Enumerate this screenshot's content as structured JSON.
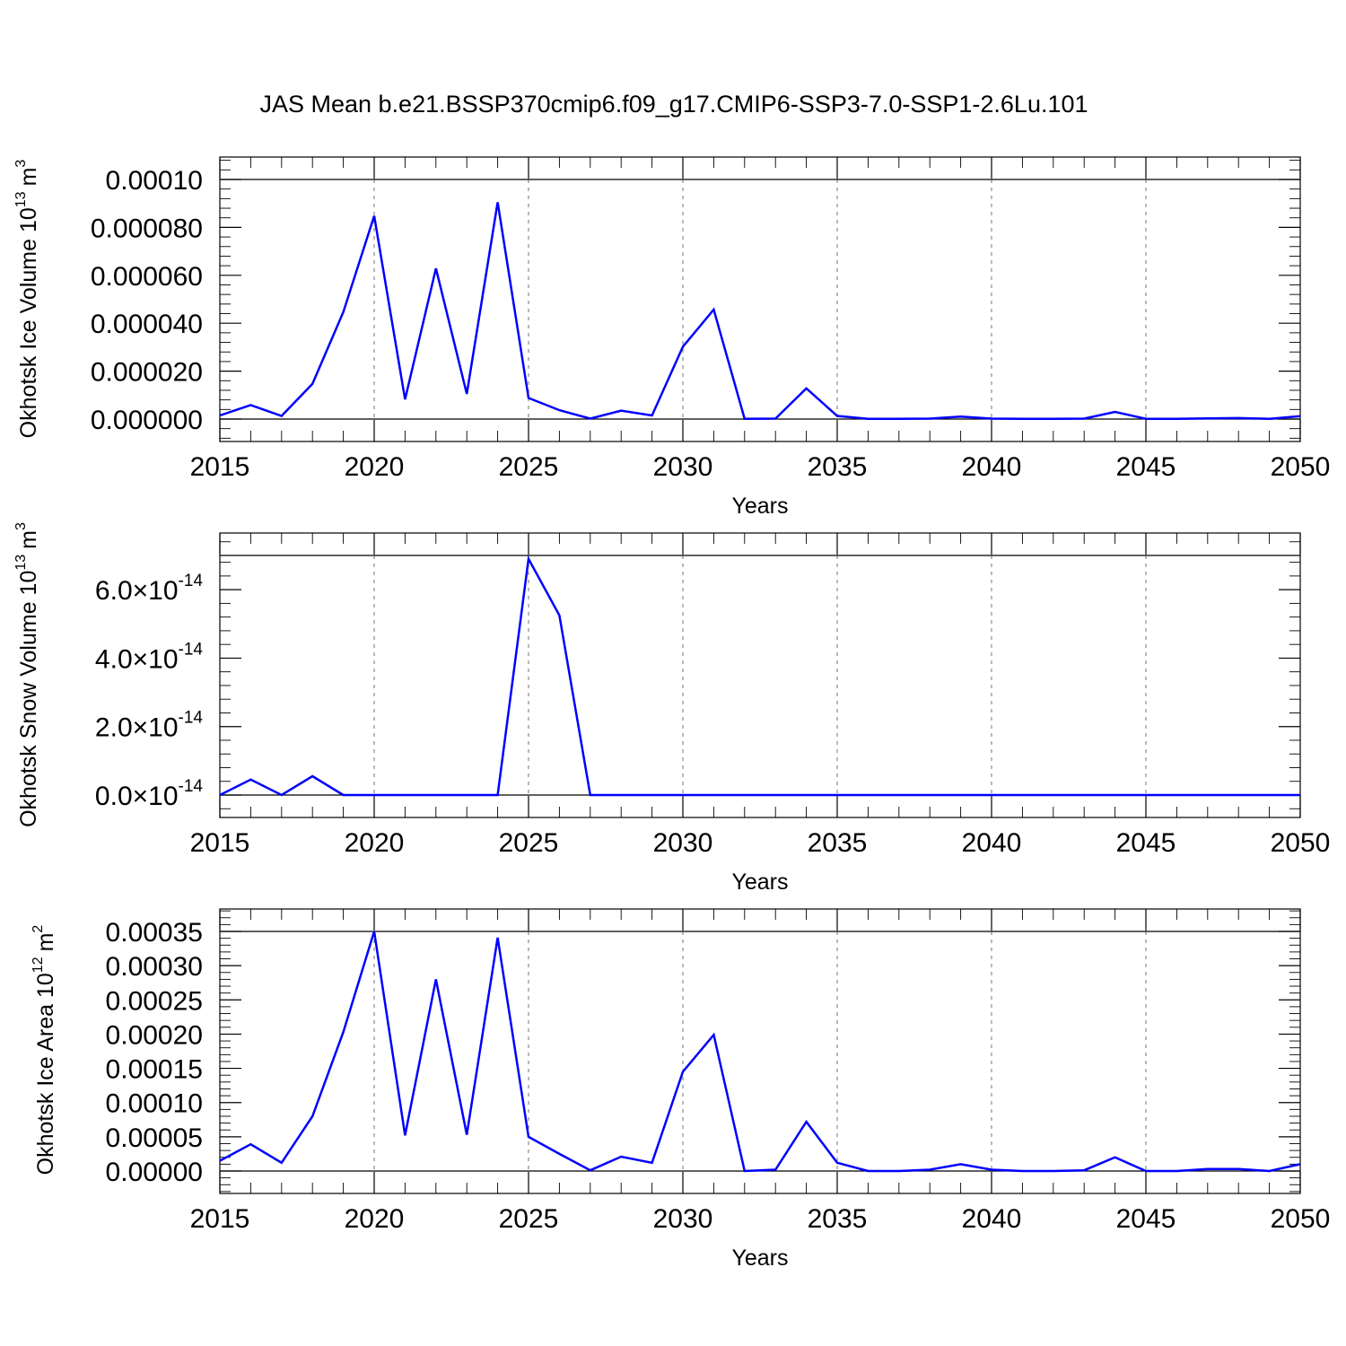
{
  "title": "JAS Mean b.e21.BSSP370cmip6.f09_g17.CMIP6-SSP3-7.0-SSP1-2.6Lu.101",
  "chart_data": [
    {
      "type": "line",
      "xlabel": "Years",
      "ylabel": "Okhotsk Ice Volume 10",
      "ylabel_sup": "13",
      "ylabel_unit": "m",
      "ylabel_unit_sup": "3",
      "xlim": [
        2015,
        2050
      ],
      "ylim": [
        0,
        0.0001
      ],
      "x_ticks": [
        "2015",
        "2020",
        "2025",
        "2030",
        "2035",
        "2040",
        "2045",
        "2050"
      ],
      "y_ticks": [
        {
          "value": 0.0,
          "label": "0.000000"
        },
        {
          "value": 2e-05,
          "label": "0.000020"
        },
        {
          "value": 4e-05,
          "label": "0.000040"
        },
        {
          "value": 6e-05,
          "label": "0.000060"
        },
        {
          "value": 8e-05,
          "label": "0.000080"
        },
        {
          "value": 0.0001,
          "label": "0.00010"
        }
      ],
      "grid": "vertical-dashed",
      "color": "#0000ff",
      "x": [
        2015,
        2016,
        2017,
        2018,
        2019,
        2020,
        2021,
        2022,
        2023,
        2024,
        2025,
        2026,
        2027,
        2028,
        2029,
        2030,
        2031,
        2032,
        2033,
        2034,
        2035,
        2036,
        2037,
        2038,
        2039,
        2040,
        2041,
        2042,
        2043,
        2044,
        2045,
        2046,
        2047,
        2048,
        2049,
        2050
      ],
      "y": [
        1.5e-06,
        5.8e-06,
        1.3e-06,
        1.47e-05,
        4.47e-05,
        8.48e-05,
        8.2e-06,
        6.29e-05,
        1.05e-05,
        9.05e-05,
        8.8e-06,
        3.7e-06,
        2e-07,
        3.5e-06,
        1.5e-06,
        3.02e-05,
        4.57e-05,
        1e-07,
        2e-07,
        1.28e-05,
        1.3e-06,
        1e-07,
        1e-07,
        2e-07,
        1e-06,
        2e-07,
        1e-07,
        1e-07,
        2e-07,
        3e-06,
        1e-07,
        1e-07,
        3e-07,
        4e-07,
        1e-07,
        1.2e-06
      ]
    },
    {
      "type": "line",
      "xlabel": "Years",
      "ylabel": "Okhotsk Snow Volume 10",
      "ylabel_sup": "13",
      "ylabel_unit": "m",
      "ylabel_unit_sup": "3",
      "xlim": [
        2015,
        2050
      ],
      "ylim": [
        0,
        7e-14
      ],
      "x_ticks": [
        "2015",
        "2020",
        "2025",
        "2030",
        "2035",
        "2040",
        "2045",
        "2050"
      ],
      "y_ticks": [
        {
          "value": 0.0,
          "mant": "0.0",
          "exp": "-14"
        },
        {
          "value": 2e-14,
          "mant": "2.0",
          "exp": "-14"
        },
        {
          "value": 4e-14,
          "mant": "4.0",
          "exp": "-14"
        },
        {
          "value": 6e-14,
          "mant": "6.0",
          "exp": "-14"
        }
      ],
      "grid": "vertical-dashed",
      "color": "#0000ff",
      "x": [
        2015,
        2016,
        2017,
        2018,
        2019,
        2020,
        2021,
        2022,
        2023,
        2024,
        2025,
        2026,
        2027,
        2028,
        2029,
        2030,
        2031,
        2032,
        2033,
        2034,
        2035,
        2036,
        2037,
        2038,
        2039,
        2040,
        2041,
        2042,
        2043,
        2044,
        2045,
        2046,
        2047,
        2048,
        2049,
        2050
      ],
      "y": [
        0.0,
        4.5e-15,
        0.0,
        5.5e-15,
        0.0,
        0.0,
        0.0,
        0.0,
        0.0,
        0.0,
        6.9e-14,
        5.25e-14,
        0.0,
        0.0,
        0.0,
        0.0,
        0.0,
        0.0,
        0.0,
        0.0,
        0.0,
        0.0,
        0.0,
        0.0,
        0.0,
        0.0,
        0.0,
        0.0,
        0.0,
        0.0,
        0.0,
        0.0,
        0.0,
        0.0,
        0.0,
        0.0
      ]
    },
    {
      "type": "line",
      "xlabel": "Years",
      "ylabel": "Okhotsk Ice Area 10",
      "ylabel_sup": "12",
      "ylabel_unit": "m",
      "ylabel_unit_sup": "2",
      "xlim": [
        2015,
        2050
      ],
      "ylim": [
        0,
        0.00035
      ],
      "x_ticks": [
        "2015",
        "2020",
        "2025",
        "2030",
        "2035",
        "2040",
        "2045",
        "2050"
      ],
      "y_ticks": [
        {
          "value": 0.0,
          "label": "0.00000"
        },
        {
          "value": 5e-05,
          "label": "0.00005"
        },
        {
          "value": 0.0001,
          "label": "0.00010"
        },
        {
          "value": 0.00015,
          "label": "0.00015"
        },
        {
          "value": 0.0002,
          "label": "0.00020"
        },
        {
          "value": 0.00025,
          "label": "0.00025"
        },
        {
          "value": 0.0003,
          "label": "0.00030"
        },
        {
          "value": 0.00035,
          "label": "0.00035"
        }
      ],
      "grid": "vertical-dashed",
      "color": "#0000ff",
      "x": [
        2015,
        2016,
        2017,
        2018,
        2019,
        2020,
        2021,
        2022,
        2023,
        2024,
        2025,
        2026,
        2027,
        2028,
        2029,
        2030,
        2031,
        2032,
        2033,
        2034,
        2035,
        2036,
        2037,
        2038,
        2039,
        2040,
        2041,
        2042,
        2043,
        2044,
        2045,
        2046,
        2047,
        2048,
        2049,
        2050
      ],
      "y": [
        1.5e-05,
        3.9e-05,
        1.2e-05,
        8e-05,
        0.000203,
        0.00035,
        5.2e-05,
        0.00028,
        5.3e-05,
        0.000341,
        5e-05,
        2.5e-05,
        1e-06,
        2.1e-05,
        1.2e-05,
        0.000145,
        0.000199,
        0.0,
        2e-06,
        7.2e-05,
        1.2e-05,
        0.0,
        0.0,
        2e-06,
        1e-05,
        2e-06,
        0.0,
        0.0,
        1e-06,
        2e-05,
        0.0,
        0.0,
        3e-06,
        3e-06,
        0.0,
        1e-05
      ]
    }
  ]
}
